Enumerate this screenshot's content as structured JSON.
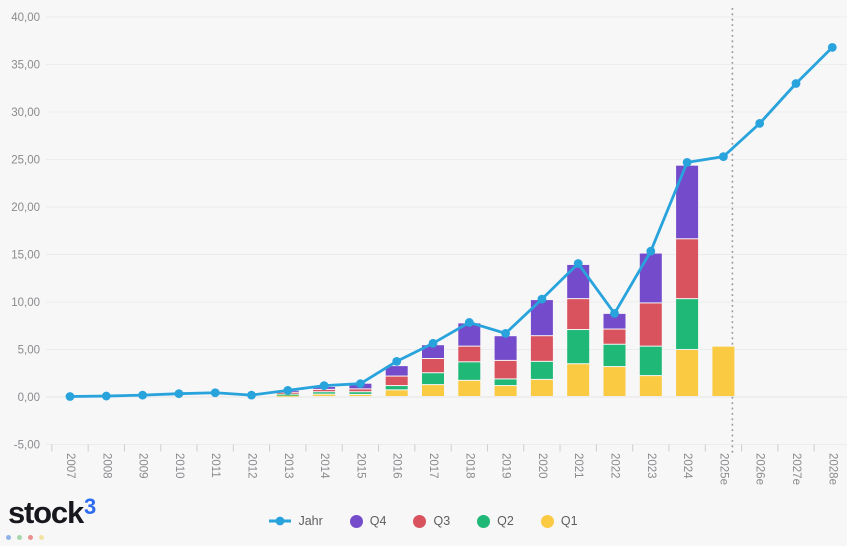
{
  "brand": {
    "logo_text": "stock",
    "logo_superscript": "3",
    "logo_superscript_color": "#2D6CF0",
    "dot_colors": [
      "#8FB3E6",
      "#A5D8AE",
      "#EC8F8F",
      "#F2E3A3"
    ]
  },
  "chart_data": {
    "type": "line+stacked-bar",
    "title": "",
    "xlabel": "",
    "ylabel": "",
    "categories": [
      "2007",
      "2008",
      "2009",
      "2010",
      "2011",
      "2012",
      "2013",
      "2014",
      "2015",
      "2016",
      "2017",
      "2018",
      "2019",
      "2020",
      "2021",
      "2022",
      "2023",
      "2024",
      "2025e",
      "2026e",
      "2027e",
      "2028e"
    ],
    "series": [
      {
        "name": "Jahr",
        "type": "line",
        "color": "#29A3DC",
        "values": [
          0.05,
          0.1,
          0.2,
          0.35,
          0.45,
          0.2,
          0.7,
          1.2,
          1.4,
          3.75,
          5.65,
          7.85,
          6.7,
          10.3,
          14.05,
          8.8,
          15.35,
          24.7,
          25.3,
          28.8,
          33.0,
          36.8
        ]
      },
      {
        "name": "Q4",
        "type": "bar",
        "color": "#744CCB",
        "values": [
          null,
          null,
          null,
          null,
          null,
          null,
          0.2,
          0.3,
          0.6,
          1.1,
          1.45,
          2.45,
          2.6,
          3.8,
          3.6,
          1.65,
          5.25,
          7.75,
          null,
          null,
          null,
          null
        ]
      },
      {
        "name": "Q3",
        "type": "bar",
        "color": "#D9535E",
        "values": [
          null,
          null,
          null,
          null,
          null,
          null,
          0.2,
          0.25,
          0.3,
          1.0,
          1.5,
          1.65,
          1.95,
          2.7,
          3.25,
          1.6,
          4.55,
          6.3,
          null,
          null,
          null,
          null
        ]
      },
      {
        "name": "Q2",
        "type": "bar",
        "color": "#1FB876",
        "values": [
          null,
          null,
          null,
          null,
          null,
          null,
          0.1,
          0.25,
          0.28,
          0.45,
          1.25,
          1.95,
          0.7,
          1.9,
          3.6,
          2.35,
          3.1,
          5.35,
          null,
          null,
          null,
          null
        ]
      },
      {
        "name": "Q1",
        "type": "bar",
        "color": "#FBCA43",
        "values": [
          null,
          null,
          null,
          null,
          null,
          null,
          0.15,
          0.25,
          0.22,
          0.7,
          1.25,
          1.7,
          1.15,
          1.8,
          3.45,
          3.15,
          2.2,
          4.95,
          5.3,
          null,
          null,
          null
        ]
      }
    ],
    "stack_order": [
      "Q1",
      "Q2",
      "Q3",
      "Q4"
    ],
    "ylim": [
      -5,
      40
    ],
    "yticks": [
      {
        "value": 40,
        "label": "40,00"
      },
      {
        "value": 35,
        "label": "35,00"
      },
      {
        "value": 30,
        "label": "30,00"
      },
      {
        "value": 25,
        "label": "25,00"
      },
      {
        "value": 20,
        "label": "20,00"
      },
      {
        "value": 15,
        "label": "15,00"
      },
      {
        "value": 10,
        "label": "10,00"
      },
      {
        "value": 5,
        "label": "5,00"
      },
      {
        "value": 0,
        "label": "0,00"
      },
      {
        "value": -5,
        "label": "-5,00"
      }
    ],
    "divider": {
      "after_category": "2025e",
      "style": "dotted"
    },
    "grid": true,
    "legend_position": "bottom",
    "legend": [
      "Jahr",
      "Q4",
      "Q3",
      "Q2",
      "Q1"
    ]
  }
}
